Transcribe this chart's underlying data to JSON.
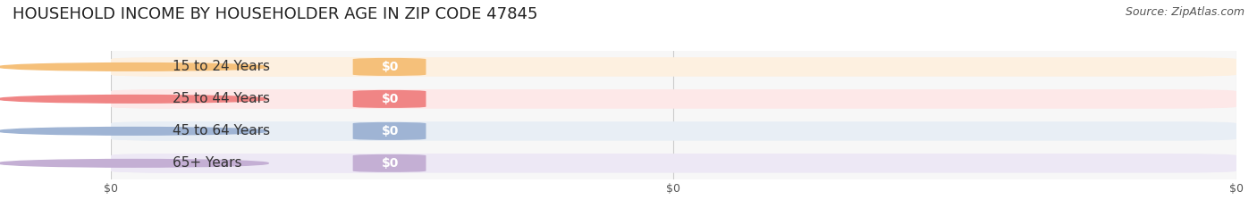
{
  "title": "HOUSEHOLD INCOME BY HOUSEHOLDER AGE IN ZIP CODE 47845",
  "source": "Source: ZipAtlas.com",
  "categories": [
    "15 to 24 Years",
    "25 to 44 Years",
    "45 to 64 Years",
    "65+ Years"
  ],
  "values": [
    0,
    0,
    0,
    0
  ],
  "bar_colors": [
    "#f5c07a",
    "#f08585",
    "#9fb4d4",
    "#c4afd4"
  ],
  "bar_bg_colors": [
    "#fdf0e0",
    "#fde8e8",
    "#e8eef5",
    "#ede8f5"
  ],
  "dot_colors": [
    "#f5c07a",
    "#f08585",
    "#9fb4d4",
    "#c4afd4"
  ],
  "xlim": [
    0,
    1
  ],
  "xtick_labels": [
    "$0",
    "$0",
    "$0"
  ],
  "xtick_positions": [
    0.0,
    0.5,
    1.0
  ],
  "background_color": "#ffffff",
  "plot_bg_color": "#f7f7f7",
  "title_fontsize": 13,
  "label_fontsize": 11,
  "source_fontsize": 9,
  "bar_height": 0.6
}
